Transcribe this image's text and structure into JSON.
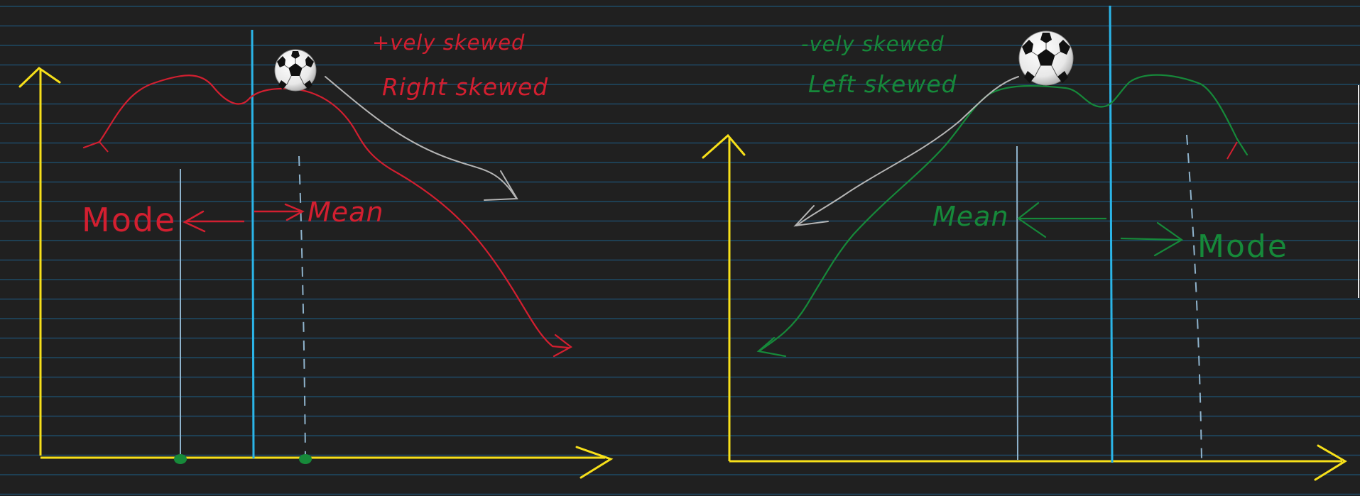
{
  "colors": {
    "background": "#202020",
    "ruled_line": "#1e4a66",
    "axis": "#f7e01a",
    "peak_line": "#2bb5e8",
    "thin_line": "#8fb3cc",
    "positive": "#d31f30",
    "negative": "#16893a",
    "arrow_gray": "#b5b5b5",
    "marker": "#178a3a"
  },
  "left_panel": {
    "title": "+vely skewed",
    "subtitle": "Right skewed",
    "mode_label": "Mode",
    "mean_label": "Mean",
    "ball_icon": "soccer-ball-icon"
  },
  "right_panel": {
    "title": "-vely skewed",
    "subtitle": "Left skewed",
    "mean_label": "Mean",
    "mode_label": "Mode",
    "ball_icon": "soccer-ball-icon"
  }
}
